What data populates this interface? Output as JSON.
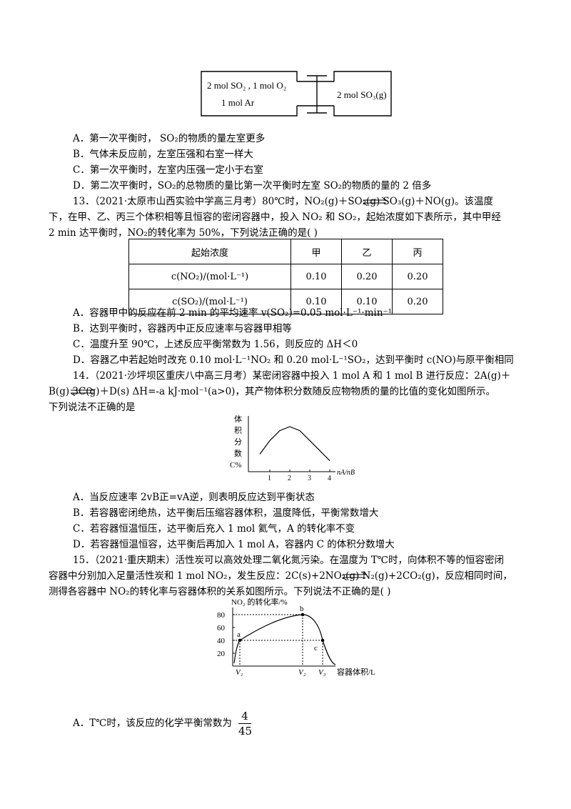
{
  "apparatus": {
    "left_text_1": "2 mol SO₂ , 1 mol O₂",
    "left_text_2": "1 mol Ar",
    "right_text": "2 mol SO₃(g)"
  },
  "q12": {
    "A": "A．第一次平衡时，  SO₂的物质的量左室更多",
    "B": "B．气体未反应前，左室压强和右室一样大",
    "C": "C．第一次平衡时，左室内压强一定小于右室",
    "D": "D．第二次平衡时，SO₂的总物质的量比第一次平衡时左室 SO₂的物质的量的 2 倍多"
  },
  "q13": {
    "line1": "13．（2021·太原市山西实验中学高三月考）80℃时，NO₂(g)＋SO₂(g)        SO₃(g)＋NO(g)。该温度",
    "line2": "下，在甲、乙、丙三个体积相等且恒容的密闭容器中，投入 NO₂ 和 SO₂，起始浓度如下表所示，其中甲经",
    "line3": "2 min 达平衡时，NO₂的转化率为 50%，下列说法正确的是(      )",
    "table": {
      "headers": [
        "起始浓度",
        "甲",
        "乙",
        "丙"
      ],
      "rows": [
        [
          "c(NO₂)/(mol·L⁻¹)",
          "0.10",
          "0.20",
          "0.20"
        ],
        [
          "c(SO₂)/(mol·L⁻¹)",
          "0.10",
          "0.10",
          "0.20"
        ]
      ]
    },
    "A": "A．容器甲中的反应在前 2 min 的平均速率 v(SO₂)=0.05 mol·L⁻¹·min⁻¹",
    "B": "B．达到平衡时，容器丙中正反应速率与容器甲相等",
    "C": "C．温度升至 90℃，上述反应平衡常数为 1.56，则反应的 ΔH＜0",
    "D": "D．容器乙中若起始时改充 0.10 mol·L⁻¹NO₂ 和 0.20 mol·L⁻¹SO₂，达到平衡时 c(NO)与原平衡相同"
  },
  "q14": {
    "line1": "14．（2021·沙坪坝区重庆八中高三月考）某密闭容器中投入 1 mol A 和 1 mol B 进行反应：2A(g)＋",
    "line2": "B(g)        3C(g)＋D(s)    ΔH=-a  kJ·mol⁻¹(a>0)，其产物体积分数随反应物物质的量的比值的变化如图所示。",
    "line3": "下列说法不正确的是",
    "chart_data": {
      "type": "line",
      "ylabel": "体积分数C%",
      "xlabel": "nA/nB",
      "x_ticks": [
        "1",
        "2",
        "3",
        "4"
      ],
      "series": [
        {
          "x": [
            0.5,
            1,
            1.5,
            2,
            2.5,
            3,
            3.5,
            4
          ],
          "y": [
            0.35,
            0.62,
            0.82,
            0.9,
            0.82,
            0.62,
            0.42,
            0.22
          ]
        }
      ]
    },
    "A": "A．当反应速率 2vB正=vA逆，则表明反应达到平衡状态",
    "B": "B．若容器密闭绝热，达平衡后压缩容器体积，温度降低，平衡常数增大",
    "C": "C．若容器恒温恒压，达平衡后充入 1 mol 氦气，A 的转化率不变",
    "D": "D．若容器恒温恒容，达平衡后再加入 1 mol A，容器内 C 的体积分数增大"
  },
  "q15": {
    "line1": "15．（2021·重庆期末）活性炭可以高效处理二氧化氮污染。在温度为 T℃时，向体积不等的恒容密闭",
    "line2": "容器中分别加入足量活性炭和 1 mol NO₂，发生反应：2C(s)+2NO₂(g)         N₂(g)+2CO₂(g)，反应相同时间，",
    "line3": "测得各容器中 NO₂的转化率与容器体积的关系如图所示。下列说法不正确的是(      )",
    "chart_data": {
      "type": "line",
      "ylabel": "NO₂ 的转化率/%",
      "xlabel": "容器体积/L",
      "y_ticks": [
        "20",
        "40",
        "60",
        "80"
      ],
      "x_ticks": [
        "V₁",
        "V₂",
        "V₃"
      ],
      "points": [
        {
          "label": "a",
          "x": "V₁",
          "y": 40
        },
        {
          "label": "b",
          "x": "V₂",
          "y": 80
        },
        {
          "label": "c",
          "x": "V₃",
          "y": 40
        }
      ]
    },
    "A_prefix": "A．T℃时，该反应的化学平衡常数为",
    "A_num": "4",
    "A_den": "45"
  }
}
